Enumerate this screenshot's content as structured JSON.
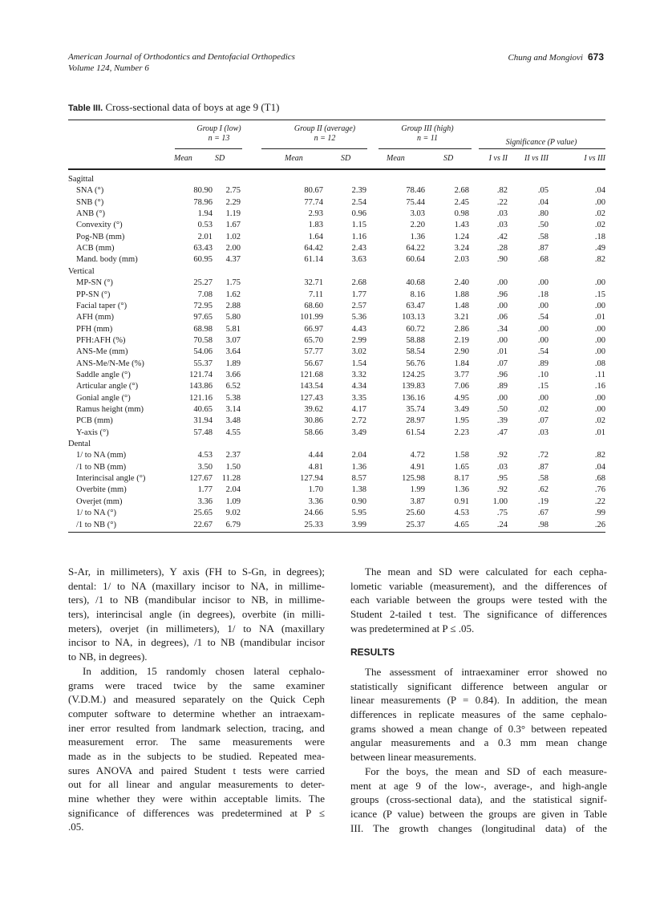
{
  "header": {
    "journal": "American Journal of Orthodontics and Dentofacial Orthopedics",
    "volume": "Volume 124, Number 6",
    "authors": "Chung and Mongiovi",
    "page": "673"
  },
  "table": {
    "label": "Table III.",
    "title": "Cross-sectional data of boys at age 9 (T1)",
    "groups": [
      {
        "name": "Group I (low)",
        "n": "n = 13"
      },
      {
        "name": "Group II (average)",
        "n": "n = 12"
      },
      {
        "name": "Group III (high)",
        "n": "n = 11"
      }
    ],
    "significance_header": "Significance (P value)",
    "columns": [
      "Mean",
      "SD",
      "Mean",
      "SD",
      "Mean",
      "SD",
      "I vs II",
      "II vs III",
      "I vs III"
    ],
    "sections": [
      {
        "name": "Sagittal",
        "rows": [
          [
            "SNA (°)",
            "80.90",
            "2.75",
            "80.67",
            "2.39",
            "78.46",
            "2.68",
            ".82",
            ".05",
            ".04"
          ],
          [
            "SNB (°)",
            "78.96",
            "2.29",
            "77.74",
            "2.54",
            "75.44",
            "2.45",
            ".22",
            ".04",
            ".00"
          ],
          [
            "ANB (°)",
            "1.94",
            "1.19",
            "2.93",
            "0.96",
            "3.03",
            "0.98",
            ".03",
            ".80",
            ".02"
          ],
          [
            "Convexity (°)",
            "0.53",
            "1.67",
            "1.83",
            "1.15",
            "2.20",
            "1.43",
            ".03",
            ".50",
            ".02"
          ],
          [
            "Pog-NB (mm)",
            "2.01",
            "1.02",
            "1.64",
            "1.16",
            "1.36",
            "1.24",
            ".42",
            ".58",
            ".18"
          ],
          [
            "ACB (mm)",
            "63.43",
            "2.00",
            "64.42",
            "2.43",
            "64.22",
            "3.24",
            ".28",
            ".87",
            ".49"
          ],
          [
            "Mand. body (mm)",
            "60.95",
            "4.37",
            "61.14",
            "3.63",
            "60.64",
            "2.03",
            ".90",
            ".68",
            ".82"
          ]
        ]
      },
      {
        "name": "Vertical",
        "rows": [
          [
            "MP-SN (°)",
            "25.27",
            "1.75",
            "32.71",
            "2.68",
            "40.68",
            "2.40",
            ".00",
            ".00",
            ".00"
          ],
          [
            "PP-SN (°)",
            "7.08",
            "1.62",
            "7.11",
            "1.77",
            "8.16",
            "1.88",
            ".96",
            ".18",
            ".15"
          ],
          [
            "Facial taper (°)",
            "72.95",
            "2.88",
            "68.60",
            "2.57",
            "63.47",
            "1.48",
            ".00",
            ".00",
            ".00"
          ],
          [
            "AFH (mm)",
            "97.65",
            "5.80",
            "101.99",
            "5.36",
            "103.13",
            "3.21",
            ".06",
            ".54",
            ".01"
          ],
          [
            "PFH (mm)",
            "68.98",
            "5.81",
            "66.97",
            "4.43",
            "60.72",
            "2.86",
            ".34",
            ".00",
            ".00"
          ],
          [
            "PFH:AFH (%)",
            "70.58",
            "3.07",
            "65.70",
            "2.99",
            "58.88",
            "2.19",
            ".00",
            ".00",
            ".00"
          ],
          [
            "ANS-Me (mm)",
            "54.06",
            "3.64",
            "57.77",
            "3.02",
            "58.54",
            "2.90",
            ".01",
            ".54",
            ".00"
          ],
          [
            "ANS-Me/N-Me (%)",
            "55.37",
            "1.89",
            "56.67",
            "1.54",
            "56.76",
            "1.84",
            ".07",
            ".89",
            ".08"
          ],
          [
            "Saddle angle (°)",
            "121.74",
            "3.66",
            "121.68",
            "3.32",
            "124.25",
            "3.77",
            ".96",
            ".10",
            ".11"
          ],
          [
            "Articular angle (°)",
            "143.86",
            "6.52",
            "143.54",
            "4.34",
            "139.83",
            "7.06",
            ".89",
            ".15",
            ".16"
          ],
          [
            "Gonial angle (°)",
            "121.16",
            "5.38",
            "127.43",
            "3.35",
            "136.16",
            "4.95",
            ".00",
            ".00",
            ".00"
          ],
          [
            "Ramus height (mm)",
            "40.65",
            "3.14",
            "39.62",
            "4.17",
            "35.74",
            "3.49",
            ".50",
            ".02",
            ".00"
          ],
          [
            "PCB (mm)",
            "31.94",
            "3.48",
            "30.86",
            "2.72",
            "28.97",
            "1.95",
            ".39",
            ".07",
            ".02"
          ],
          [
            "Y-axis (°)",
            "57.48",
            "4.55",
            "58.66",
            "3.49",
            "61.54",
            "2.23",
            ".47",
            ".03",
            ".01"
          ]
        ]
      },
      {
        "name": "Dental",
        "rows": [
          [
            "1/ to NA (mm)",
            "4.53",
            "2.37",
            "4.44",
            "2.04",
            "4.72",
            "1.58",
            ".92",
            ".72",
            ".82"
          ],
          [
            "/1 to NB (mm)",
            "3.50",
            "1.50",
            "4.81",
            "1.36",
            "4.91",
            "1.65",
            ".03",
            ".87",
            ".04"
          ],
          [
            "Interincisal angle (°)",
            "127.67",
            "11.28",
            "127.94",
            "8.57",
            "125.98",
            "8.17",
            ".95",
            ".58",
            ".68"
          ],
          [
            "Overbite (mm)",
            "1.77",
            "2.04",
            "1.70",
            "1.38",
            "1.99",
            "1.36",
            ".92",
            ".62",
            ".76"
          ],
          [
            "Overjet (mm)",
            "3.36",
            "1.09",
            "3.36",
            "0.90",
            "3.87",
            "0.91",
            "1.00",
            ".19",
            ".22"
          ],
          [
            "1/ to NA (°)",
            "25.65",
            "9.02",
            "24.66",
            "5.95",
            "25.60",
            "4.53",
            ".75",
            ".67",
            ".99"
          ],
          [
            "/1 to NB (°)",
            "22.67",
            "6.79",
            "25.33",
            "3.99",
            "25.37",
            "4.65",
            ".24",
            ".98",
            ".26"
          ]
        ]
      }
    ]
  },
  "body": {
    "left_lines": [
      "S-Ar, in millimeters), Y axis (FH to S-Gn, in degrees);",
      "dental: 1/ to NA (maxillary incisor to NA, in millime-",
      "ters), /1 to NB (mandibular incisor to NB, in millime-",
      "ters), interincisal angle (in degrees), overbite (in milli-",
      "meters), overjet (in millimeters), 1/ to NA (maxillary",
      "incisor to NA, in degrees), /1 to NB (mandibular incisor",
      "to NB, in degrees).",
      "In addition, 15 randomly chosen lateral cephalo-",
      "grams were traced twice by the same examiner",
      "(V.D.M.) and measured separately on the Quick Ceph",
      "computer software to determine whether an intraexam-",
      "iner error resulted from landmark selection, tracing, and",
      "measurement error. The same measurements were",
      "made as in the subjects to be studied. Repeated mea-",
      "sures ANOVA and paired Student t tests were carried",
      "out for all linear and angular measurements to deter-",
      "mine whether they were within acceptable limits. The",
      "significance of differences was predetermined at P ≤",
      ".05."
    ],
    "right_lines_1": [
      "The mean and SD were calculated for each cepha-",
      "lometic variable (measurement), and the differences of",
      "each variable between the groups were tested with the",
      "Student 2-tailed t test. The significance of differences",
      "was predetermined at P ≤ .05."
    ],
    "results_heading": "RESULTS",
    "right_lines_2": [
      "The assessment of intraexaminer error showed no",
      "statistically significant difference between angular or",
      "linear measurements (P = 0.84). In addition, the mean",
      "differences in replicate measures of the same cephalo-",
      "grams showed a mean change of 0.3° between repeated",
      "angular measurements and a 0.3 mm mean change",
      "between linear measurements.",
      "For the boys, the mean and SD of each measure-",
      "ment at age 9 of the low-, average-, and high-angle",
      "groups (cross-sectional data), and the statistical signif-",
      "icance (P value) between the groups are given in Table",
      "III. The growth changes (longitudinal data) of the"
    ]
  }
}
